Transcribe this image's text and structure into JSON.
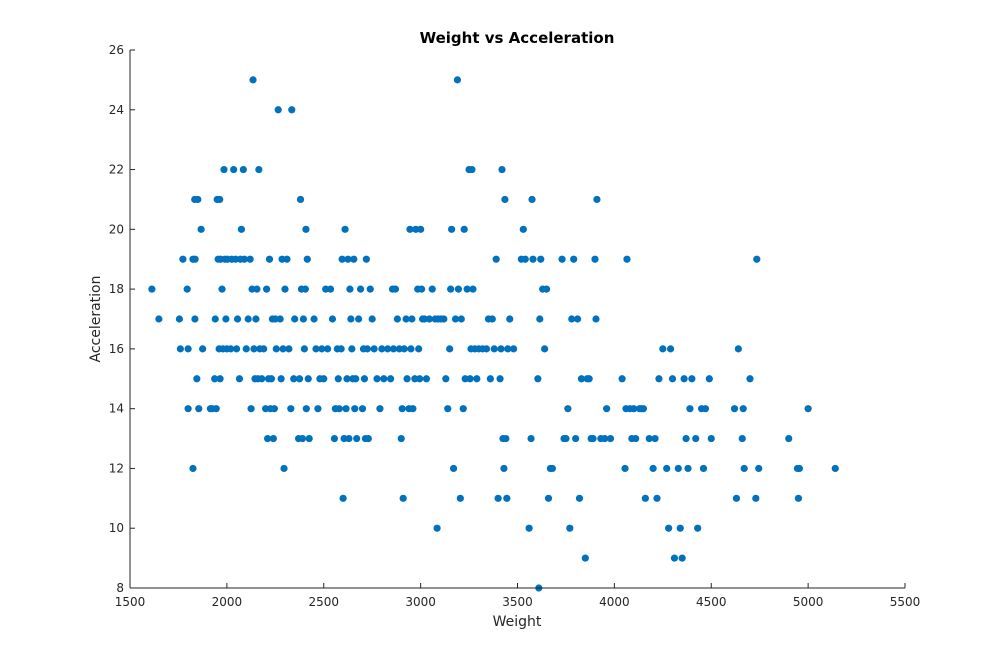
{
  "chart_data": {
    "type": "scatter",
    "title": "Weight vs Acceleration",
    "xlabel": "Weight",
    "ylabel": "Acceleration",
    "xlim": [
      1500,
      5500
    ],
    "ylim": [
      8,
      26
    ],
    "xticks": [
      1500,
      2000,
      2500,
      3000,
      3500,
      4000,
      4500,
      5000,
      5500
    ],
    "yticks": [
      8,
      10,
      12,
      14,
      16,
      18,
      20,
      22,
      24,
      26
    ],
    "grid": false,
    "marker_color": "#0072BD",
    "points": [
      [
        1613,
        18
      ],
      [
        1649,
        17
      ],
      [
        1755,
        17
      ],
      [
        1760,
        16
      ],
      [
        1773,
        19
      ],
      [
        1795,
        18
      ],
      [
        1800,
        14
      ],
      [
        1800,
        16
      ],
      [
        1825,
        12
      ],
      [
        1825,
        19
      ],
      [
        1834,
        21
      ],
      [
        1835,
        17
      ],
      [
        1836,
        19
      ],
      [
        1845,
        15
      ],
      [
        1850,
        21
      ],
      [
        1855,
        14
      ],
      [
        1867,
        20
      ],
      [
        1875,
        16
      ],
      [
        1915,
        14
      ],
      [
        1925,
        14
      ],
      [
        1937,
        15
      ],
      [
        1940,
        17
      ],
      [
        1945,
        14
      ],
      [
        1950,
        21
      ],
      [
        1955,
        19
      ],
      [
        1960,
        16
      ],
      [
        1963,
        21
      ],
      [
        1965,
        15
      ],
      [
        1968,
        19
      ],
      [
        1975,
        18
      ],
      [
        1980,
        16
      ],
      [
        1985,
        22
      ],
      [
        1990,
        19
      ],
      [
        1995,
        17
      ],
      [
        2000,
        16
      ],
      [
        2003,
        19
      ],
      [
        2020,
        16
      ],
      [
        2025,
        19
      ],
      [
        2035,
        22
      ],
      [
        2045,
        19
      ],
      [
        2050,
        16
      ],
      [
        2055,
        17
      ],
      [
        2065,
        15
      ],
      [
        2070,
        19
      ],
      [
        2075,
        20
      ],
      [
        2085,
        22
      ],
      [
        2090,
        19
      ],
      [
        2100,
        16
      ],
      [
        2110,
        17
      ],
      [
        2120,
        19
      ],
      [
        2125,
        14
      ],
      [
        2130,
        18
      ],
      [
        2135,
        25
      ],
      [
        2140,
        16
      ],
      [
        2145,
        15
      ],
      [
        2150,
        17
      ],
      [
        2155,
        18
      ],
      [
        2160,
        15
      ],
      [
        2165,
        22
      ],
      [
        2170,
        16
      ],
      [
        2180,
        15
      ],
      [
        2190,
        16
      ],
      [
        2200,
        14
      ],
      [
        2205,
        18
      ],
      [
        2210,
        13
      ],
      [
        2215,
        15
      ],
      [
        2220,
        19
      ],
      [
        2225,
        14
      ],
      [
        2230,
        15
      ],
      [
        2235,
        17
      ],
      [
        2240,
        13
      ],
      [
        2245,
        14
      ],
      [
        2250,
        17
      ],
      [
        2255,
        16
      ],
      [
        2265,
        24
      ],
      [
        2275,
        17
      ],
      [
        2280,
        15
      ],
      [
        2285,
        19
      ],
      [
        2290,
        16
      ],
      [
        2295,
        12
      ],
      [
        2300,
        18
      ],
      [
        2310,
        19
      ],
      [
        2320,
        16
      ],
      [
        2330,
        14
      ],
      [
        2335,
        24
      ],
      [
        2345,
        15
      ],
      [
        2350,
        17
      ],
      [
        2370,
        13
      ],
      [
        2375,
        15
      ],
      [
        2380,
        21
      ],
      [
        2385,
        18
      ],
      [
        2390,
        13
      ],
      [
        2395,
        17
      ],
      [
        2400,
        16
      ],
      [
        2405,
        18
      ],
      [
        2408,
        20
      ],
      [
        2410,
        14
      ],
      [
        2415,
        19
      ],
      [
        2420,
        15
      ],
      [
        2425,
        13
      ],
      [
        2450,
        17
      ],
      [
        2460,
        16
      ],
      [
        2470,
        14
      ],
      [
        2480,
        15
      ],
      [
        2490,
        16
      ],
      [
        2500,
        15
      ],
      [
        2510,
        18
      ],
      [
        2520,
        16
      ],
      [
        2535,
        18
      ],
      [
        2545,
        17
      ],
      [
        2555,
        13
      ],
      [
        2560,
        14
      ],
      [
        2570,
        16
      ],
      [
        2575,
        15
      ],
      [
        2580,
        14
      ],
      [
        2590,
        16
      ],
      [
        2595,
        19
      ],
      [
        2600,
        11
      ],
      [
        2605,
        13
      ],
      [
        2610,
        20
      ],
      [
        2615,
        14
      ],
      [
        2620,
        15
      ],
      [
        2625,
        19
      ],
      [
        2630,
        13
      ],
      [
        2635,
        18
      ],
      [
        2640,
        17
      ],
      [
        2645,
        16
      ],
      [
        2650,
        15
      ],
      [
        2655,
        19
      ],
      [
        2660,
        14
      ],
      [
        2665,
        15
      ],
      [
        2670,
        13
      ],
      [
        2680,
        17
      ],
      [
        2690,
        18
      ],
      [
        2700,
        14
      ],
      [
        2705,
        16
      ],
      [
        2710,
        15
      ],
      [
        2715,
        13
      ],
      [
        2720,
        19
      ],
      [
        2725,
        16
      ],
      [
        2730,
        13
      ],
      [
        2740,
        18
      ],
      [
        2750,
        17
      ],
      [
        2760,
        16
      ],
      [
        2775,
        15
      ],
      [
        2790,
        14
      ],
      [
        2800,
        16
      ],
      [
        2810,
        15
      ],
      [
        2830,
        16
      ],
      [
        2845,
        15
      ],
      [
        2855,
        18
      ],
      [
        2860,
        16
      ],
      [
        2870,
        18
      ],
      [
        2880,
        17
      ],
      [
        2890,
        16
      ],
      [
        2900,
        13
      ],
      [
        2905,
        14
      ],
      [
        2910,
        11
      ],
      [
        2915,
        16
      ],
      [
        2925,
        17
      ],
      [
        2930,
        15
      ],
      [
        2940,
        14
      ],
      [
        2945,
        20
      ],
      [
        2950,
        16
      ],
      [
        2955,
        17
      ],
      [
        2960,
        14
      ],
      [
        2970,
        15
      ],
      [
        2975,
        20
      ],
      [
        2985,
        18
      ],
      [
        2990,
        16
      ],
      [
        2995,
        15
      ],
      [
        3000,
        20
      ],
      [
        3005,
        18
      ],
      [
        3010,
        17
      ],
      [
        3020,
        17
      ],
      [
        3030,
        15
      ],
      [
        3045,
        17
      ],
      [
        3060,
        18
      ],
      [
        3075,
        17
      ],
      [
        3085,
        10
      ],
      [
        3090,
        17
      ],
      [
        3105,
        17
      ],
      [
        3120,
        17
      ],
      [
        3130,
        15
      ],
      [
        3140,
        14
      ],
      [
        3150,
        16
      ],
      [
        3155,
        18
      ],
      [
        3160,
        20
      ],
      [
        3170,
        12
      ],
      [
        3180,
        17
      ],
      [
        3190,
        25
      ],
      [
        3195,
        18
      ],
      [
        3205,
        11
      ],
      [
        3210,
        17
      ],
      [
        3220,
        14
      ],
      [
        3225,
        20
      ],
      [
        3230,
        15
      ],
      [
        3240,
        18
      ],
      [
        3250,
        22
      ],
      [
        3255,
        15
      ],
      [
        3260,
        16
      ],
      [
        3265,
        22
      ],
      [
        3270,
        18
      ],
      [
        3280,
        16
      ],
      [
        3290,
        15
      ],
      [
        3300,
        16
      ],
      [
        3320,
        16
      ],
      [
        3340,
        16
      ],
      [
        3350,
        17
      ],
      [
        3360,
        15
      ],
      [
        3370,
        17
      ],
      [
        3380,
        16
      ],
      [
        3390,
        19
      ],
      [
        3400,
        11
      ],
      [
        3410,
        15
      ],
      [
        3415,
        16
      ],
      [
        3420,
        22
      ],
      [
        3425,
        13
      ],
      [
        3430,
        12
      ],
      [
        3435,
        21
      ],
      [
        3440,
        13
      ],
      [
        3445,
        11
      ],
      [
        3450,
        16
      ],
      [
        3460,
        17
      ],
      [
        3480,
        16
      ],
      [
        3520,
        19
      ],
      [
        3530,
        20
      ],
      [
        3540,
        19
      ],
      [
        3560,
        10
      ],
      [
        3570,
        13
      ],
      [
        3575,
        21
      ],
      [
        3580,
        19
      ],
      [
        3605,
        15
      ],
      [
        3610,
        8
      ],
      [
        3615,
        17
      ],
      [
        3620,
        19
      ],
      [
        3630,
        18
      ],
      [
        3640,
        16
      ],
      [
        3650,
        18
      ],
      [
        3660,
        11
      ],
      [
        3670,
        12
      ],
      [
        3680,
        12
      ],
      [
        3730,
        19
      ],
      [
        3740,
        13
      ],
      [
        3750,
        13
      ],
      [
        3760,
        14
      ],
      [
        3770,
        10
      ],
      [
        3780,
        17
      ],
      [
        3790,
        19
      ],
      [
        3800,
        13
      ],
      [
        3810,
        17
      ],
      [
        3820,
        11
      ],
      [
        3830,
        15
      ],
      [
        3850,
        9
      ],
      [
        3860,
        15
      ],
      [
        3870,
        15
      ],
      [
        3880,
        13
      ],
      [
        3890,
        13
      ],
      [
        3900,
        19
      ],
      [
        3905,
        17
      ],
      [
        3910,
        21
      ],
      [
        3930,
        13
      ],
      [
        3950,
        13
      ],
      [
        3960,
        14
      ],
      [
        3980,
        13
      ],
      [
        4040,
        15
      ],
      [
        4055,
        12
      ],
      [
        4060,
        14
      ],
      [
        4065,
        19
      ],
      [
        4080,
        14
      ],
      [
        4090,
        13
      ],
      [
        4100,
        14
      ],
      [
        4110,
        13
      ],
      [
        4130,
        14
      ],
      [
        4140,
        14
      ],
      [
        4150,
        14
      ],
      [
        4160,
        11
      ],
      [
        4180,
        13
      ],
      [
        4200,
        12
      ],
      [
        4210,
        13
      ],
      [
        4220,
        11
      ],
      [
        4230,
        15
      ],
      [
        4250,
        16
      ],
      [
        4270,
        12
      ],
      [
        4280,
        10
      ],
      [
        4290,
        16
      ],
      [
        4300,
        15
      ],
      [
        4310,
        9
      ],
      [
        4330,
        12
      ],
      [
        4340,
        10
      ],
      [
        4350,
        9
      ],
      [
        4360,
        15
      ],
      [
        4370,
        13
      ],
      [
        4380,
        12
      ],
      [
        4390,
        14
      ],
      [
        4400,
        15
      ],
      [
        4420,
        13
      ],
      [
        4430,
        10
      ],
      [
        4450,
        14
      ],
      [
        4460,
        12
      ],
      [
        4470,
        14
      ],
      [
        4490,
        15
      ],
      [
        4500,
        13
      ],
      [
        4620,
        14
      ],
      [
        4630,
        11
      ],
      [
        4640,
        16
      ],
      [
        4660,
        13
      ],
      [
        4665,
        14
      ],
      [
        4670,
        12
      ],
      [
        4700,
        15
      ],
      [
        4730,
        11
      ],
      [
        4735,
        19
      ],
      [
        4745,
        12
      ],
      [
        4900,
        13
      ],
      [
        4945,
        12
      ],
      [
        4950,
        11
      ],
      [
        4955,
        12
      ],
      [
        5000,
        14
      ],
      [
        5140,
        12
      ]
    ]
  }
}
